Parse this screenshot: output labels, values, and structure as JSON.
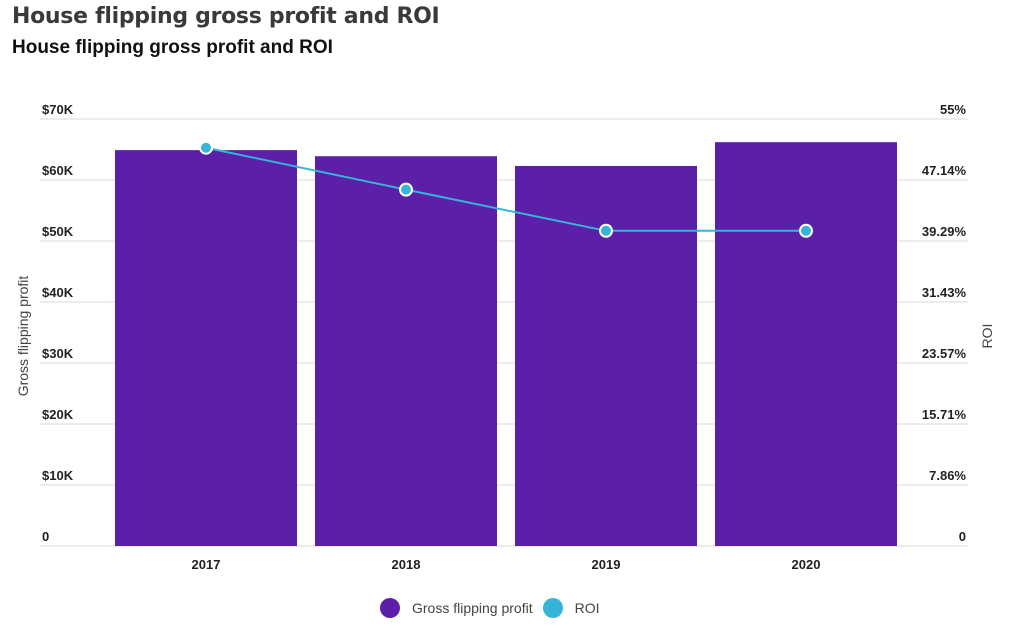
{
  "header": {
    "title": "House flipping gross profit and ROI",
    "subtitle": "House flipping gross profit and ROI"
  },
  "colors": {
    "bar": "#5b1fa8",
    "line": "#35b5d8",
    "grid": "#d8d8d8"
  },
  "chart_data": {
    "type": "bar",
    "title": "House flipping gross profit and ROI",
    "categories": [
      "2017",
      "2018",
      "2019",
      "2020"
    ],
    "series": [
      {
        "name": "Gross flipping profit",
        "type": "bar",
        "axis": "left",
        "values": [
          64900,
          63900,
          62300,
          66200
        ]
      },
      {
        "name": "ROI",
        "type": "line",
        "axis": "right",
        "values": [
          51.3,
          45.9,
          40.6,
          40.6
        ]
      }
    ],
    "ylabel": "Gross flipping profit",
    "y2label": "ROI",
    "ylim": [
      0,
      70000
    ],
    "y2lim": [
      0,
      55
    ],
    "yticks": [
      "0",
      "$10K",
      "$20K",
      "$30K",
      "$40K",
      "$50K",
      "$60K",
      "$70K"
    ],
    "y2ticks": [
      "0",
      "7.86%",
      "15.71%",
      "23.57%",
      "31.43%",
      "39.29%",
      "47.14%",
      "55%"
    ],
    "grid": true,
    "legend": "bottom-center",
    "legend_entries": [
      "Gross flipping profit",
      "ROI"
    ]
  }
}
